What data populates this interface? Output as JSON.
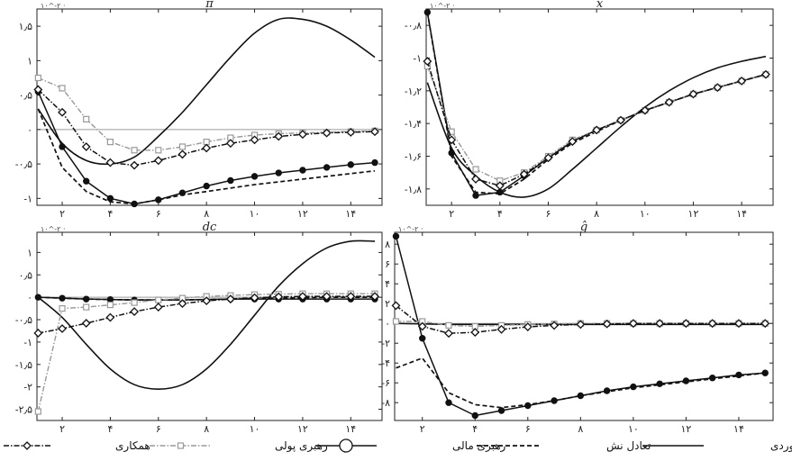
{
  "legend": [
    {
      "key": "model",
      "label": "الگوی براوردی",
      "style": "solid-thin"
    },
    {
      "key": "nash",
      "label": "تعادل نش",
      "style": "dashed"
    },
    {
      "key": "fiscal",
      "label": "رهبری مالی",
      "style": "solid-circle"
    },
    {
      "key": "monetary",
      "label": "رهبری پولی",
      "style": "dashdot-square"
    },
    {
      "key": "coop",
      "label": "همکاری",
      "style": "dashdot-diamond"
    }
  ],
  "colors": {
    "ink": "#111111",
    "gray_series": "#999999",
    "zero_line": "#9a9a9a",
    "axis": "#222222"
  },
  "chart_data": [
    {
      "type": "line",
      "title": "π̂",
      "scale_label": "۱۰^-۲ ·",
      "x": [
        1,
        2,
        3,
        4,
        5,
        6,
        7,
        8,
        9,
        10,
        11,
        12,
        13,
        14,
        15
      ],
      "xticks": [
        2,
        4,
        6,
        8,
        10,
        12,
        14
      ],
      "xtick_labels": [
        "۲",
        "۴",
        "۶",
        "۸",
        "۱۰",
        "۱۲",
        "۱۴"
      ],
      "xlim": [
        0.95,
        15.3
      ],
      "ylim": [
        -1.1,
        1.75
      ],
      "yticks": [
        -1,
        -0.5,
        0,
        0.5,
        1,
        1.5
      ],
      "ytick_labels": [
        "-۱",
        "-۰٫۵",
        "۰",
        "۰٫۵",
        "۱",
        "۱٫۵"
      ],
      "series": [
        {
          "key": "model",
          "values": [
            0.3,
            -0.2,
            -0.45,
            -0.5,
            -0.4,
            -0.1,
            0.25,
            0.65,
            1.05,
            1.4,
            1.6,
            1.6,
            1.5,
            1.3,
            1.05
          ]
        },
        {
          "key": "nash",
          "values": [
            0.3,
            -0.55,
            -0.9,
            -1.05,
            -1.08,
            -1.02,
            -0.95,
            -0.9,
            -0.85,
            -0.8,
            -0.76,
            -0.72,
            -0.68,
            -0.64,
            -0.6
          ]
        },
        {
          "key": "fiscal",
          "values": [
            0.55,
            -0.25,
            -0.75,
            -1.0,
            -1.08,
            -1.02,
            -0.92,
            -0.82,
            -0.74,
            -0.68,
            -0.63,
            -0.59,
            -0.55,
            -0.51,
            -0.48
          ]
        },
        {
          "key": "monetary",
          "values": [
            0.75,
            0.6,
            0.15,
            -0.18,
            -0.3,
            -0.3,
            -0.25,
            -0.18,
            -0.12,
            -0.08,
            -0.06,
            -0.05,
            -0.04,
            -0.03,
            -0.02
          ]
        },
        {
          "key": "coop",
          "values": [
            0.58,
            0.25,
            -0.25,
            -0.48,
            -0.52,
            -0.45,
            -0.36,
            -0.27,
            -0.2,
            -0.15,
            -0.1,
            -0.07,
            -0.05,
            -0.04,
            -0.03
          ]
        }
      ]
    },
    {
      "type": "line",
      "title": "x̂",
      "scale_label": "۱۰^-۲ ·",
      "x": [
        1,
        2,
        3,
        4,
        5,
        6,
        7,
        8,
        9,
        10,
        11,
        12,
        13,
        14,
        15
      ],
      "xticks": [
        2,
        4,
        6,
        8,
        10,
        12,
        14
      ],
      "xtick_labels": [
        "۲",
        "۴",
        "۶",
        "۸",
        "۱۰",
        "۱۲",
        "۱۴"
      ],
      "xlim": [
        0.95,
        15.3
      ],
      "ylim": [
        -1.9,
        -0.7
      ],
      "yticks": [
        -1.8,
        -1.6,
        -1.4,
        -1.2,
        -1,
        -0.8
      ],
      "ytick_labels": [
        "-۱٫۸",
        "-۱٫۶",
        "-۱٫۴",
        "-۱٫۲",
        "-۱",
        "-۰٫۸"
      ],
      "series": [
        {
          "key": "model",
          "values": [
            -1.15,
            -1.55,
            -1.72,
            -1.82,
            -1.85,
            -1.8,
            -1.68,
            -1.55,
            -1.42,
            -1.3,
            -1.2,
            -1.12,
            -1.06,
            -1.02,
            -0.99
          ]
        },
        {
          "key": "nash",
          "values": [
            -0.72,
            -1.6,
            -1.82,
            -1.83,
            -1.74,
            -1.62,
            -1.52,
            -1.45,
            -1.38,
            -1.32,
            -1.27,
            -1.22,
            -1.18,
            -1.14,
            -1.1
          ]
        },
        {
          "key": "fiscal",
          "values": [
            -0.72,
            -1.58,
            -1.84,
            -1.82,
            -1.72,
            -1.61,
            -1.51,
            -1.44,
            -1.38,
            -1.32,
            -1.27,
            -1.22,
            -1.18,
            -1.14,
            -1.1
          ]
        },
        {
          "key": "monetary",
          "values": [
            -1.05,
            -1.45,
            -1.68,
            -1.75,
            -1.7,
            -1.6,
            -1.5,
            -1.44,
            -1.38,
            -1.32,
            -1.27,
            -1.22,
            -1.18,
            -1.14,
            -1.1
          ]
        },
        {
          "key": "coop",
          "values": [
            -1.02,
            -1.5,
            -1.74,
            -1.78,
            -1.71,
            -1.61,
            -1.51,
            -1.44,
            -1.38,
            -1.32,
            -1.27,
            -1.22,
            -1.18,
            -1.14,
            -1.1
          ]
        }
      ]
    },
    {
      "type": "line",
      "title": "dc",
      "scale_label": "۱۰^-۲ ·",
      "x": [
        1,
        2,
        3,
        4,
        5,
        6,
        7,
        8,
        9,
        10,
        11,
        12,
        13,
        14,
        15
      ],
      "xticks": [
        2,
        4,
        6,
        8,
        10,
        12,
        14
      ],
      "xtick_labels": [
        "۲",
        "۴",
        "۶",
        "۸",
        "۱۰",
        "۱۲",
        "۱۴"
      ],
      "xlim": [
        0.95,
        15.3
      ],
      "ylim": [
        -2.75,
        1.45
      ],
      "yticks": [
        -2.5,
        -2,
        -1.5,
        -1,
        -0.5,
        0,
        0.5,
        1
      ],
      "ytick_labels": [
        "-۲٫۵",
        "-۲",
        "-۱٫۵",
        "-۱",
        "-۰٫۵",
        "۰",
        "۰٫۵",
        "۱"
      ],
      "series": [
        {
          "key": "model",
          "values": [
            0,
            -0.45,
            -1.05,
            -1.6,
            -1.95,
            -2.05,
            -1.95,
            -1.6,
            -1.05,
            -0.4,
            0.25,
            0.75,
            1.1,
            1.25,
            1.25
          ]
        },
        {
          "key": "nash",
          "values": [
            0,
            -0.02,
            -0.04,
            -0.05,
            -0.06,
            -0.06,
            -0.06,
            -0.05,
            -0.04,
            -0.03,
            -0.02,
            -0.01,
            0,
            0,
            0
          ]
        },
        {
          "key": "fiscal",
          "values": [
            0,
            -0.02,
            -0.04,
            -0.05,
            -0.06,
            -0.06,
            -0.06,
            -0.05,
            -0.04,
            -0.04,
            -0.04,
            -0.04,
            -0.04,
            -0.04,
            -0.04
          ]
        },
        {
          "key": "monetary",
          "values": [
            -2.55,
            -0.25,
            -0.22,
            -0.17,
            -0.12,
            -0.06,
            -0.02,
            0.02,
            0.04,
            0.06,
            0.07,
            0.08,
            0.08,
            0.08,
            0.08
          ]
        },
        {
          "key": "coop",
          "values": [
            -0.8,
            -0.7,
            -0.58,
            -0.45,
            -0.32,
            -0.22,
            -0.14,
            -0.08,
            -0.04,
            -0.01,
            0.01,
            0.02,
            0.02,
            0.02,
            0.02
          ]
        }
      ]
    },
    {
      "type": "line",
      "title": "ĝ",
      "scale_label": "۱۰^-۲ ·",
      "x": [
        1,
        2,
        3,
        4,
        5,
        6,
        7,
        8,
        9,
        10,
        11,
        12,
        13,
        14,
        15
      ],
      "xticks": [
        2,
        4,
        6,
        8,
        10,
        12,
        14
      ],
      "xtick_labels": [
        "۲",
        "۴",
        "۶",
        "۸",
        "۱۰",
        "۱۲",
        "۱۴"
      ],
      "xlim": [
        0.95,
        15.3
      ],
      "ylim": [
        -9.8,
        9.2
      ],
      "yticks": [
        -8,
        -6,
        -4,
        -2,
        0,
        2,
        4,
        6,
        8
      ],
      "ytick_labels": [
        "-۸",
        "-۶",
        "-۴",
        "-۲",
        "۰",
        "۲",
        "۴",
        "۶",
        "۸"
      ],
      "series": [
        {
          "key": "model",
          "values": [
            0,
            -0.05,
            -0.1,
            -0.1,
            -0.1,
            -0.1,
            -0.1,
            -0.1,
            -0.1,
            -0.1,
            -0.1,
            -0.1,
            -0.1,
            -0.1,
            -0.1
          ]
        },
        {
          "key": "nash",
          "values": [
            -4.5,
            -3.5,
            -7.0,
            -8.2,
            -8.5,
            -8.2,
            -7.8,
            -7.3,
            -6.9,
            -6.5,
            -6.2,
            -5.9,
            -5.6,
            -5.3,
            -5.0
          ]
        },
        {
          "key": "fiscal",
          "values": [
            8.8,
            -1.5,
            -8.0,
            -9.3,
            -8.8,
            -8.3,
            -7.8,
            -7.3,
            -6.8,
            -6.4,
            -6.1,
            -5.8,
            -5.5,
            -5.2,
            -5.0
          ]
        },
        {
          "key": "monetary",
          "values": [
            0.2,
            0.2,
            -0.2,
            -0.3,
            -0.2,
            -0.1,
            -0.05,
            0,
            0,
            0,
            0,
            0,
            0,
            0,
            0
          ]
        },
        {
          "key": "coop",
          "values": [
            1.8,
            -0.3,
            -1.0,
            -0.9,
            -0.6,
            -0.35,
            -0.2,
            -0.1,
            -0.05,
            0,
            0,
            0,
            0,
            0,
            0
          ]
        }
      ]
    }
  ]
}
